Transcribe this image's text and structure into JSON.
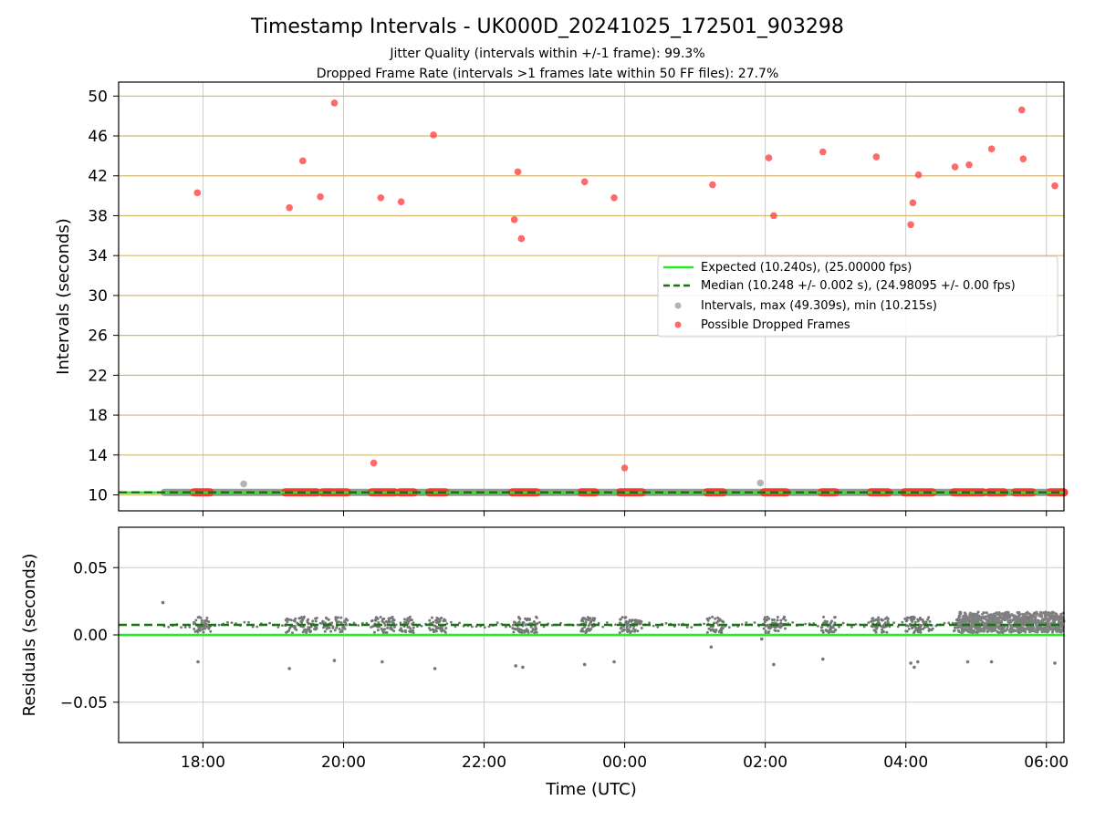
{
  "figure": {
    "title": "Timestamp Intervals - UK000D_20241025_172501_903298",
    "subtitle_1": "Jitter Quality (intervals within +/-1 frame): 99.3%",
    "subtitle_2": "Dropped Frame Rate (intervals >1 frames late within 50 FF files): 27.7%"
  },
  "chart_data": [
    {
      "type": "scatter",
      "panel": "intervals",
      "ylabel": "Intervals (seconds)",
      "xlabel": "",
      "ylim": [
        8.4,
        51.4
      ],
      "yticks": [
        10,
        14,
        18,
        22,
        26,
        30,
        34,
        38,
        42,
        46,
        50
      ],
      "grid": true,
      "legend_position": "center-right",
      "lines": [
        {
          "name": "Expected (10.240s), (25.00000 fps)",
          "y": 10.24,
          "color": "#22ee22",
          "style": "solid"
        },
        {
          "name": "Median (10.248 +/- 0.002 s), (24.98095 +/- 0.00 fps)",
          "y": 10.248,
          "color": "#117711",
          "style": "dashed"
        }
      ],
      "series": [
        {
          "name": "Intervals, max (49.309s), min (10.215s)",
          "color": "#999999",
          "band": {
            "start_hour": 17.45,
            "end_hour": 30.25,
            "y": 10.25
          },
          "points": [
            [
              18.58,
              11.1
            ],
            [
              25.93,
              11.2
            ]
          ]
        },
        {
          "name": "Possible Dropped Frames",
          "color": "#ff4444",
          "points": [
            [
              17.92,
              40.3
            ],
            [
              19.23,
              38.8
            ],
            [
              19.42,
              43.5
            ],
            [
              19.67,
              39.9
            ],
            [
              19.87,
              49.3
            ],
            [
              20.43,
              13.2
            ],
            [
              20.53,
              39.8
            ],
            [
              20.82,
              39.4
            ],
            [
              21.28,
              46.1
            ],
            [
              22.43,
              37.6
            ],
            [
              22.48,
              42.4
            ],
            [
              22.53,
              35.7
            ],
            [
              23.43,
              41.4
            ],
            [
              23.85,
              39.8
            ],
            [
              24.0,
              12.7
            ],
            [
              25.25,
              41.1
            ],
            [
              26.05,
              43.8
            ],
            [
              26.12,
              38.0
            ],
            [
              26.82,
              44.4
            ],
            [
              27.58,
              43.9
            ],
            [
              28.07,
              37.1
            ],
            [
              28.1,
              39.3
            ],
            [
              28.18,
              42.1
            ],
            [
              28.7,
              42.9
            ],
            [
              28.9,
              43.1
            ],
            [
              29.22,
              44.7
            ],
            [
              29.65,
              48.6
            ],
            [
              29.67,
              43.7
            ],
            [
              30.12,
              41.0
            ]
          ],
          "baseline_clusters": [
            [
              17.87,
              18.1
            ],
            [
              19.17,
              19.62
            ],
            [
              19.7,
              19.85
            ],
            [
              19.88,
              20.05
            ],
            [
              20.4,
              20.73
            ],
            [
              20.8,
              21.0
            ],
            [
              21.22,
              21.45
            ],
            [
              22.4,
              22.75
            ],
            [
              23.38,
              23.58
            ],
            [
              23.93,
              24.25
            ],
            [
              25.17,
              25.4
            ],
            [
              25.98,
              26.3
            ],
            [
              26.8,
              27.0
            ],
            [
              27.5,
              27.75
            ],
            [
              27.98,
              28.38
            ],
            [
              28.68,
              29.1
            ],
            [
              29.18,
              29.4
            ],
            [
              29.55,
              29.8
            ],
            [
              30.05,
              30.25
            ]
          ]
        }
      ]
    },
    {
      "type": "scatter",
      "panel": "residuals",
      "ylabel": "Residuals (seconds)",
      "xlabel": "Time (UTC)",
      "xlim": [
        16.8,
        30.25
      ],
      "xticks": [
        "18:00",
        "20:00",
        "22:00",
        "00:00",
        "02:00",
        "04:00",
        "06:00"
      ],
      "xtick_hours": [
        18,
        20,
        22,
        24,
        26,
        28,
        30
      ],
      "ylim": [
        -0.08,
        0.08
      ],
      "yticks": [
        "0.05",
        "0.00",
        "−0.05"
      ],
      "ytick_values": [
        0.05,
        0.0,
        -0.05
      ],
      "grid": true,
      "lines": [
        {
          "name": "expected",
          "y": 0.0,
          "color": "#22ee22",
          "style": "solid"
        },
        {
          "name": "median",
          "y": 0.0075,
          "color": "#117711",
          "style": "dashed"
        }
      ],
      "outliers": [
        [
          17.43,
          0.024
        ],
        [
          17.93,
          -0.02
        ],
        [
          19.23,
          -0.025
        ],
        [
          19.87,
          -0.019
        ],
        [
          20.55,
          -0.02
        ],
        [
          21.3,
          -0.025
        ],
        [
          22.45,
          -0.023
        ],
        [
          22.55,
          -0.024
        ],
        [
          23.43,
          -0.022
        ],
        [
          23.85,
          -0.02
        ],
        [
          25.23,
          -0.009
        ],
        [
          25.95,
          -0.003
        ],
        [
          26.12,
          -0.022
        ],
        [
          26.82,
          -0.018
        ],
        [
          28.07,
          -0.021
        ],
        [
          28.12,
          -0.024
        ],
        [
          28.17,
          -0.02
        ],
        [
          28.88,
          -0.02
        ],
        [
          29.22,
          -0.02
        ],
        [
          30.12,
          -0.021
        ]
      ]
    }
  ]
}
